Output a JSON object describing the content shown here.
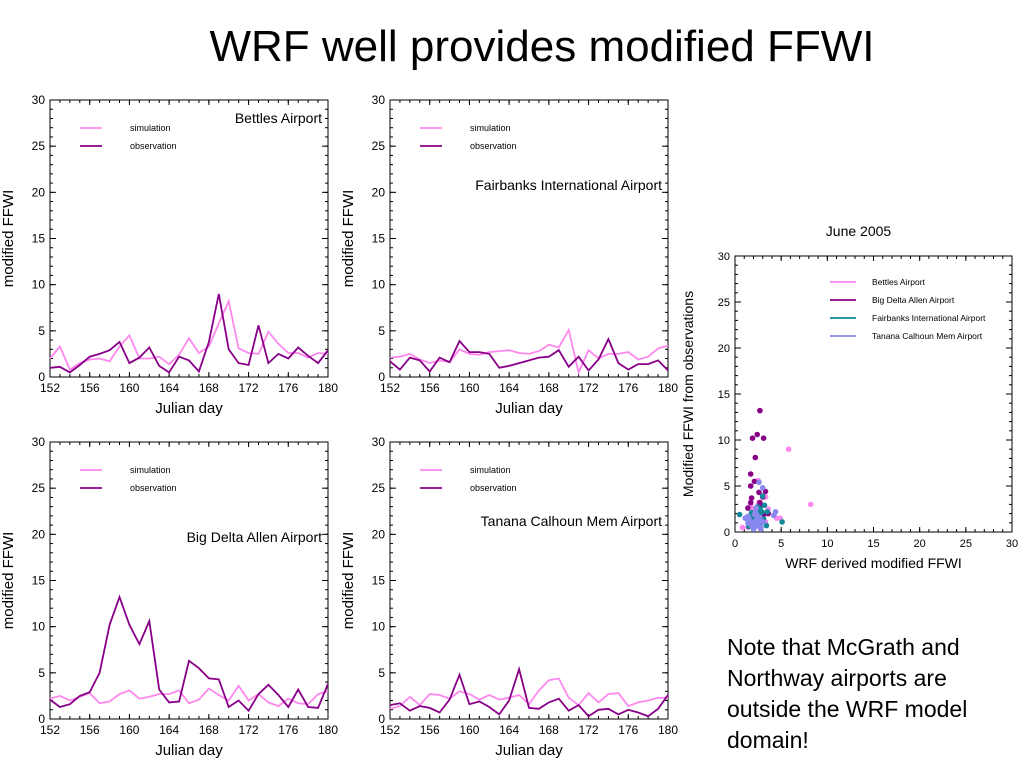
{
  "slide": {
    "title": "WRF well provides modified FFWI",
    "note": "Note that McGrath and Northway airports are outside the WRF model domain!"
  },
  "colors": {
    "simulation": "#ff88ee",
    "observation": "#880088",
    "bettles": "#ff88ee",
    "big_delta": "#880088",
    "fairbanks": "#118899",
    "tanana": "#8888ee"
  },
  "chart_data": [
    {
      "type": "line",
      "title": "Bettles Airport",
      "xlabel": "Julian day",
      "ylabel": "modified FFWI",
      "xlim": [
        152,
        180
      ],
      "ylim": [
        0,
        30
      ],
      "xticks": [
        152,
        156,
        160,
        164,
        168,
        172,
        176,
        180
      ],
      "yticks": [
        0,
        5,
        10,
        15,
        20,
        25,
        30
      ],
      "legend": "top-left",
      "x": [
        152,
        153,
        154,
        155,
        156,
        157,
        158,
        159,
        160,
        161,
        162,
        163,
        164,
        165,
        166,
        167,
        168,
        169,
        170,
        171,
        172,
        173,
        174,
        175,
        176,
        177,
        178,
        179,
        180
      ],
      "series": [
        {
          "name": "simulation",
          "values": [
            2.0,
            3.3,
            0.8,
            1.5,
            1.9,
            2.0,
            1.7,
            3.3,
            4.5,
            2.0,
            2.0,
            2.2,
            1.4,
            2.4,
            4.2,
            2.6,
            3.3,
            5.8,
            8.2,
            3.1,
            2.6,
            2.5,
            4.9,
            3.6,
            2.6,
            2.6,
            2.1,
            2.6,
            2.5
          ]
        },
        {
          "name": "observation",
          "values": [
            1.0,
            1.1,
            0.5,
            1.3,
            2.2,
            2.5,
            2.9,
            3.8,
            1.5,
            2.1,
            3.2,
            1.2,
            0.5,
            2.2,
            1.8,
            0.6,
            3.8,
            9.0,
            3.0,
            1.5,
            1.3,
            5.6,
            1.5,
            2.5,
            2.0,
            3.2,
            2.3,
            1.5,
            2.9
          ]
        }
      ]
    },
    {
      "type": "line",
      "title": "Fairbanks International Airport",
      "xlabel": "Julian day",
      "ylabel": "modified FFWI",
      "xlim": [
        152,
        180
      ],
      "ylim": [
        0,
        30
      ],
      "xticks": [
        152,
        156,
        160,
        164,
        168,
        172,
        176,
        180
      ],
      "yticks": [
        0,
        5,
        10,
        15,
        20,
        25,
        30
      ],
      "legend": "top-left",
      "x": [
        152,
        153,
        154,
        155,
        156,
        157,
        158,
        159,
        160,
        161,
        162,
        163,
        164,
        165,
        166,
        167,
        168,
        169,
        170,
        171,
        172,
        173,
        174,
        175,
        176,
        177,
        178,
        179,
        180
      ],
      "series": [
        {
          "name": "simulation",
          "values": [
            2.1,
            2.2,
            2.5,
            1.9,
            1.5,
            1.8,
            1.6,
            3.0,
            2.5,
            2.4,
            2.7,
            2.8,
            2.9,
            2.6,
            2.5,
            2.8,
            3.5,
            3.2,
            5.1,
            0.5,
            2.9,
            2.0,
            2.5,
            2.5,
            2.7,
            1.9,
            2.2,
            3.1,
            3.4
          ]
        },
        {
          "name": "observation",
          "values": [
            1.7,
            0.8,
            2.1,
            1.8,
            0.6,
            2.1,
            1.6,
            3.9,
            2.7,
            2.7,
            2.5,
            1.0,
            1.2,
            1.5,
            1.8,
            2.1,
            2.2,
            2.9,
            1.1,
            2.2,
            0.7,
            1.9,
            4.1,
            1.5,
            0.8,
            1.4,
            1.4,
            1.8,
            0.7
          ]
        }
      ]
    },
    {
      "type": "line",
      "title": "Big Delta Allen Airport",
      "xlabel": "Julian day",
      "ylabel": "modified FFWI",
      "xlim": [
        152,
        180
      ],
      "ylim": [
        0,
        30
      ],
      "xticks": [
        152,
        156,
        160,
        164,
        168,
        172,
        176,
        180
      ],
      "yticks": [
        0,
        5,
        10,
        15,
        20,
        25,
        30
      ],
      "legend": "top-left",
      "x": [
        152,
        153,
        154,
        155,
        156,
        157,
        158,
        159,
        160,
        161,
        162,
        163,
        164,
        165,
        166,
        167,
        168,
        169,
        170,
        171,
        172,
        173,
        174,
        175,
        176,
        177,
        178,
        179,
        180
      ],
      "series": [
        {
          "name": "simulation",
          "values": [
            2.2,
            2.5,
            2.0,
            2.4,
            2.8,
            1.7,
            1.9,
            2.7,
            3.1,
            2.2,
            2.4,
            2.7,
            2.7,
            3.1,
            1.7,
            2.1,
            3.3,
            2.6,
            2.0,
            3.6,
            2.0,
            2.7,
            1.8,
            1.4,
            2.2,
            1.7,
            1.6,
            2.7,
            3.0
          ]
        },
        {
          "name": "observation",
          "values": [
            2.1,
            1.3,
            1.6,
            2.5,
            2.9,
            5.0,
            10.2,
            13.2,
            10.2,
            8.1,
            10.6,
            3.2,
            1.8,
            1.9,
            6.3,
            5.5,
            4.4,
            4.3,
            1.3,
            2.0,
            0.9,
            2.7,
            3.7,
            2.6,
            1.3,
            3.2,
            1.3,
            1.2,
            3.8
          ]
        }
      ]
    },
    {
      "type": "line",
      "title": "Tanana Calhoun Mem Airport",
      "xlabel": "Julian day",
      "ylabel": "modified FFWI",
      "xlim": [
        152,
        180
      ],
      "ylim": [
        0,
        30
      ],
      "xticks": [
        152,
        156,
        160,
        164,
        168,
        172,
        176,
        180
      ],
      "yticks": [
        0,
        5,
        10,
        15,
        20,
        25,
        30
      ],
      "legend": "top-left",
      "x": [
        152,
        153,
        154,
        155,
        156,
        157,
        158,
        159,
        160,
        161,
        162,
        163,
        164,
        165,
        166,
        167,
        168,
        169,
        170,
        171,
        172,
        173,
        174,
        175,
        176,
        177,
        178,
        179,
        180
      ],
      "series": [
        {
          "name": "simulation",
          "values": [
            1.1,
            1.4,
            2.4,
            1.5,
            2.7,
            2.6,
            2.2,
            3.0,
            2.7,
            2.1,
            2.6,
            2.1,
            2.3,
            2.6,
            1.6,
            3.1,
            4.2,
            4.4,
            2.3,
            1.5,
            2.8,
            1.8,
            2.7,
            2.8,
            1.4,
            1.8,
            2.0,
            2.3,
            2.3
          ]
        },
        {
          "name": "observation",
          "values": [
            1.5,
            1.7,
            0.9,
            1.4,
            1.2,
            0.7,
            2.1,
            4.8,
            1.6,
            1.9,
            1.3,
            0.5,
            2.0,
            5.4,
            1.2,
            1.1,
            1.8,
            2.2,
            0.9,
            1.5,
            0.3,
            1.0,
            1.1,
            0.5,
            1.0,
            0.7,
            0.3,
            1.1,
            2.6
          ]
        }
      ]
    },
    {
      "type": "scatter",
      "title": "June 2005",
      "xlabel": "WRF derived modified FFWI",
      "ylabel": "Modified FFWI from observations",
      "xlim": [
        0,
        30
      ],
      "ylim": [
        0,
        30
      ],
      "xticks": [
        0,
        5,
        10,
        15,
        20,
        25,
        30
      ],
      "yticks": [
        0,
        5,
        10,
        15,
        20,
        25,
        30
      ],
      "legend": "top-right",
      "series": [
        {
          "name": "Bettles Airport",
          "points": [
            [
              2.0,
              1.0
            ],
            [
              3.3,
              1.1
            ],
            [
              0.8,
              0.5
            ],
            [
              1.5,
              1.3
            ],
            [
              1.9,
              2.2
            ],
            [
              2.0,
              2.5
            ],
            [
              1.7,
              2.9
            ],
            [
              3.3,
              3.8
            ],
            [
              4.5,
              1.5
            ],
            [
              2.0,
              2.1
            ],
            [
              2.2,
              1.2
            ],
            [
              1.4,
              0.5
            ],
            [
              2.4,
              2.2
            ],
            [
              4.2,
              1.8
            ],
            [
              2.6,
              0.6
            ],
            [
              3.3,
              3.8
            ],
            [
              5.8,
              9.0
            ],
            [
              8.2,
              3.0
            ],
            [
              3.1,
              1.5
            ],
            [
              2.6,
              1.3
            ],
            [
              2.5,
              5.6
            ],
            [
              4.9,
              1.5
            ],
            [
              3.6,
              2.5
            ],
            [
              2.6,
              3.2
            ],
            [
              2.1,
              2.3
            ],
            [
              2.6,
              1.5
            ],
            [
              2.5,
              2.9
            ]
          ]
        },
        {
          "name": "Big Delta Allen Airport",
          "points": [
            [
              2.2,
              2.1
            ],
            [
              2.5,
              1.3
            ],
            [
              2.0,
              1.6
            ],
            [
              2.4,
              2.5
            ],
            [
              2.8,
              2.9
            ],
            [
              1.7,
              5.0
            ],
            [
              1.9,
              10.2
            ],
            [
              2.7,
              13.2
            ],
            [
              3.1,
              10.2
            ],
            [
              2.2,
              8.1
            ],
            [
              2.4,
              10.6
            ],
            [
              2.7,
              3.2
            ],
            [
              2.7,
              1.8
            ],
            [
              3.1,
              1.9
            ],
            [
              1.7,
              6.3
            ],
            [
              2.1,
              5.5
            ],
            [
              3.3,
              4.4
            ],
            [
              2.6,
              4.3
            ],
            [
              2.0,
              1.3
            ],
            [
              3.6,
              2.0
            ],
            [
              2.0,
              0.9
            ],
            [
              2.7,
              2.7
            ],
            [
              1.8,
              3.7
            ],
            [
              1.4,
              2.6
            ],
            [
              2.2,
              1.3
            ],
            [
              1.7,
              3.2
            ],
            [
              2.7,
              1.2
            ],
            [
              3.0,
              3.8
            ]
          ]
        },
        {
          "name": "Fairbanks International Airport",
          "points": [
            [
              2.1,
              1.7
            ],
            [
              2.2,
              0.8
            ],
            [
              2.5,
              2.1
            ],
            [
              1.9,
              1.8
            ],
            [
              1.5,
              0.6
            ],
            [
              1.8,
              2.1
            ],
            [
              1.6,
              1.6
            ],
            [
              3.0,
              3.9
            ],
            [
              2.5,
              2.7
            ],
            [
              2.4,
              2.7
            ],
            [
              2.7,
              2.5
            ],
            [
              2.8,
              1.0
            ],
            [
              2.9,
              1.2
            ],
            [
              2.6,
              1.5
            ],
            [
              2.5,
              1.8
            ],
            [
              2.8,
              2.1
            ],
            [
              3.5,
              2.2
            ],
            [
              3.2,
              2.9
            ],
            [
              5.1,
              1.1
            ],
            [
              2.9,
              2.2
            ],
            [
              2.0,
              0.7
            ],
            [
              2.5,
              1.9
            ],
            [
              1.9,
              1.4
            ],
            [
              0.5,
              1.9
            ],
            [
              2.2,
              0.8
            ],
            [
              3.1,
              1.4
            ],
            [
              3.4,
              0.7
            ]
          ]
        },
        {
          "name": "Tanana Calhoun Mem Airport",
          "points": [
            [
              1.1,
              1.5
            ],
            [
              1.4,
              1.7
            ],
            [
              2.4,
              0.9
            ],
            [
              1.5,
              1.4
            ],
            [
              2.7,
              1.2
            ],
            [
              2.6,
              0.7
            ],
            [
              2.2,
              2.1
            ],
            [
              3.0,
              4.8
            ],
            [
              2.7,
              1.6
            ],
            [
              2.1,
              1.9
            ],
            [
              2.6,
              1.3
            ],
            [
              2.1,
              0.5
            ],
            [
              2.3,
              2.0
            ],
            [
              2.6,
              5.4
            ],
            [
              1.6,
              1.2
            ],
            [
              3.1,
              1.1
            ],
            [
              4.2,
              1.8
            ],
            [
              4.4,
              2.2
            ],
            [
              2.3,
              0.9
            ],
            [
              1.5,
              1.5
            ],
            [
              2.8,
              0.3
            ],
            [
              1.8,
              1.0
            ],
            [
              2.7,
              1.1
            ],
            [
              2.8,
              0.5
            ],
            [
              1.4,
              1.0
            ],
            [
              1.8,
              0.7
            ],
            [
              2.0,
              0.3
            ],
            [
              2.3,
              1.1
            ],
            [
              2.3,
              2.6
            ],
            [
              2.0,
              1.0
            ],
            [
              2.2,
              1.2
            ],
            [
              2.4,
              1.4
            ],
            [
              1.9,
              0.8
            ]
          ]
        }
      ]
    }
  ]
}
